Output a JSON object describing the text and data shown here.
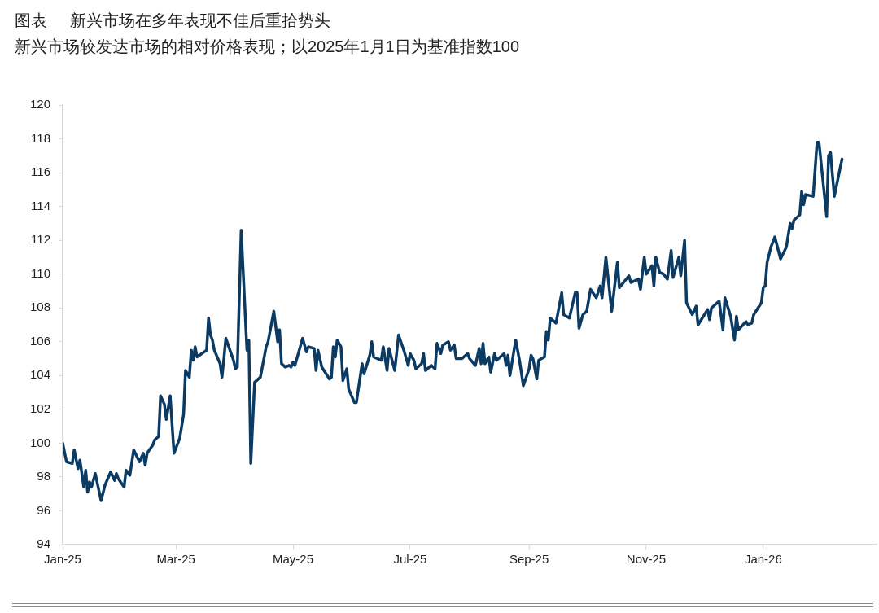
{
  "chart_data": {
    "type": "line",
    "title": "图表     新兴市场在多年表现不佳后重拾势头",
    "subtitle": "新兴市场较发达市场的相对价格表现；以2025年1月1日为基准指数100",
    "x": [
      "2025-01-01",
      "2025-01-03",
      "2025-01-06",
      "2025-01-07",
      "2025-01-09",
      "2025-01-10",
      "2025-01-12",
      "2025-01-13",
      "2025-01-14",
      "2025-01-15",
      "2025-01-16",
      "2025-01-18",
      "2025-01-21",
      "2025-01-23",
      "2025-01-26",
      "2025-01-28",
      "2025-01-29",
      "2025-01-30",
      "2025-02-02",
      "2025-02-03",
      "2025-02-05",
      "2025-02-07",
      "2025-02-10",
      "2025-02-12",
      "2025-02-13",
      "2025-02-14",
      "2025-02-17",
      "2025-02-18",
      "2025-02-20",
      "2025-02-21",
      "2025-02-23",
      "2025-02-24",
      "2025-02-26",
      "2025-02-28",
      "2025-03-03",
      "2025-03-05",
      "2025-03-06",
      "2025-03-08",
      "2025-03-09",
      "2025-03-10",
      "2025-03-11",
      "2025-03-12",
      "2025-03-17",
      "2025-03-18",
      "2025-03-19",
      "2025-03-20",
      "2025-03-21",
      "2025-03-24",
      "2025-03-25",
      "2025-03-26",
      "2025-03-27",
      "2025-03-31",
      "2025-04-01",
      "2025-04-02",
      "2025-04-04",
      "2025-04-07",
      "2025-04-08",
      "2025-04-09",
      "2025-04-11",
      "2025-04-14",
      "2025-04-17",
      "2025-04-18",
      "2025-04-21",
      "2025-04-23",
      "2025-04-24",
      "2025-04-25",
      "2025-04-27",
      "2025-04-29",
      "2025-04-30",
      "2025-05-01",
      "2025-05-02",
      "2025-05-06",
      "2025-05-08",
      "2025-05-09",
      "2025-05-12",
      "2025-05-13",
      "2025-05-14",
      "2025-05-16",
      "2025-05-20",
      "2025-05-21",
      "2025-05-22",
      "2025-05-23",
      "2025-05-24",
      "2025-05-26",
      "2025-05-27",
      "2025-05-29",
      "2025-05-30",
      "2025-06-02",
      "2025-06-03",
      "2025-06-06",
      "2025-06-07",
      "2025-06-10",
      "2025-06-11",
      "2025-06-12",
      "2025-06-16",
      "2025-06-17",
      "2025-06-19",
      "2025-06-20",
      "2025-06-23",
      "2025-06-25",
      "2025-06-28",
      "2025-06-30",
      "2025-07-01",
      "2025-07-03",
      "2025-07-04",
      "2025-07-07",
      "2025-07-08",
      "2025-07-09",
      "2025-07-12",
      "2025-07-14",
      "2025-07-15",
      "2025-07-17",
      "2025-07-18",
      "2025-07-21",
      "2025-07-22",
      "2025-07-24",
      "2025-07-25",
      "2025-07-28",
      "2025-07-31",
      "2025-08-01",
      "2025-08-04",
      "2025-08-06",
      "2025-08-07",
      "2025-08-08",
      "2025-08-09",
      "2025-08-11",
      "2025-08-12",
      "2025-08-14",
      "2025-08-15",
      "2025-08-19",
      "2025-08-20",
      "2025-08-21",
      "2025-08-22",
      "2025-08-25",
      "2025-08-27",
      "2025-08-29",
      "2025-09-01",
      "2025-09-02",
      "2025-09-03",
      "2025-09-05",
      "2025-09-06",
      "2025-09-09",
      "2025-09-10",
      "2025-09-11",
      "2025-09-12",
      "2025-09-15",
      "2025-09-18",
      "2025-09-19",
      "2025-09-22",
      "2025-09-25",
      "2025-09-26",
      "2025-09-27",
      "2025-09-29",
      "2025-10-01",
      "2025-10-03",
      "2025-10-06",
      "2025-10-08",
      "2025-10-09",
      "2025-10-11",
      "2025-10-14",
      "2025-10-17",
      "2025-10-18",
      "2025-10-23",
      "2025-10-24",
      "2025-10-28",
      "2025-10-29",
      "2025-10-31",
      "2025-11-01",
      "2025-11-04",
      "2025-11-05",
      "2025-11-06",
      "2025-11-08",
      "2025-11-10",
      "2025-11-12",
      "2025-11-14",
      "2025-11-15",
      "2025-11-18",
      "2025-11-19",
      "2025-11-21",
      "2025-11-22",
      "2025-11-25",
      "2025-11-27",
      "2025-11-28",
      "2025-12-03",
      "2025-12-04",
      "2025-12-05",
      "2025-12-09",
      "2025-12-11",
      "2025-12-12",
      "2025-12-15",
      "2025-12-17",
      "2025-12-18",
      "2025-12-19",
      "2025-12-23",
      "2025-12-24",
      "2025-12-26",
      "2025-12-27",
      "2025-12-31",
      "2026-01-01",
      "2026-01-02",
      "2026-01-03",
      "2026-01-05",
      "2026-01-07",
      "2026-01-10",
      "2026-01-13",
      "2026-01-15",
      "2026-01-16",
      "2026-01-17",
      "2026-01-20",
      "2026-01-21",
      "2026-01-22",
      "2026-01-23",
      "2026-01-27",
      "2026-01-29",
      "2026-01-30",
      "2026-02-03",
      "2026-02-04",
      "2026-02-05",
      "2026-02-07",
      "2026-02-11"
    ],
    "series": [
      {
        "color": "#0b3a63",
        "values": [
          100.0,
          98.9,
          98.8,
          99.6,
          98.5,
          99.0,
          97.4,
          98.4,
          97.1,
          97.7,
          97.4,
          98.2,
          96.6,
          97.5,
          98.3,
          97.8,
          98.2,
          97.9,
          97.4,
          98.4,
          98.1,
          99.6,
          98.9,
          99.4,
          98.7,
          99.4,
          99.9,
          100.2,
          100.4,
          102.8,
          102.3,
          101.4,
          102.8,
          99.4,
          100.3,
          101.7,
          104.3,
          103.9,
          105.5,
          104.9,
          105.7,
          105.1,
          105.5,
          107.4,
          106.4,
          106.1,
          105.5,
          104.7,
          103.9,
          105.0,
          106.2,
          104.9,
          104.4,
          104.5,
          112.6,
          105.5,
          106.1,
          98.8,
          103.6,
          103.9,
          105.7,
          106.0,
          107.8,
          106.0,
          106.7,
          104.7,
          104.5,
          104.6,
          104.5,
          104.8,
          104.6,
          106.2,
          105.4,
          105.7,
          105.6,
          104.3,
          105.5,
          104.5,
          103.8,
          103.9,
          105.7,
          105.1,
          106.1,
          105.7,
          103.7,
          104.4,
          103.2,
          102.4,
          102.4,
          104.7,
          104.1,
          105.2,
          106.0,
          105.1,
          104.9,
          105.7,
          104.3,
          105.6,
          104.3,
          106.4,
          105.4,
          104.6,
          105.3,
          104.9,
          104.4,
          104.7,
          105.3,
          104.3,
          104.6,
          104.4,
          105.9,
          105.3,
          105.8,
          106.0,
          105.5,
          105.8,
          105.0,
          105.0,
          105.3,
          105.0,
          104.6,
          105.6,
          104.7,
          105.9,
          104.7,
          105.1,
          104.2,
          105.3,
          104.9,
          105.3,
          104.6,
          105.2,
          104.0,
          106.1,
          104.9,
          103.4,
          104.4,
          105.2,
          105.0,
          103.8,
          104.9,
          105.1,
          106.6,
          106.1,
          107.4,
          107.1,
          108.9,
          107.6,
          107.4,
          108.9,
          108.9,
          106.8,
          107.6,
          107.8,
          109.1,
          108.6,
          109.3,
          108.6,
          111.0,
          107.8,
          110.7,
          109.2,
          109.9,
          109.5,
          109.7,
          109.1,
          111.0,
          110.0,
          110.5,
          109.3,
          111.0,
          110.1,
          110.0,
          109.7,
          111.4,
          109.8,
          111.0,
          109.9,
          112.0,
          108.3,
          107.6,
          108.1,
          107.0,
          107.9,
          107.3,
          108.0,
          108.4,
          106.7,
          108.6,
          107.5,
          106.1,
          107.5,
          106.7,
          107.2,
          107.0,
          107.1,
          107.6,
          108.3,
          109.2,
          109.3,
          110.7,
          111.6,
          112.2,
          110.9,
          111.6,
          113.0,
          112.7,
          113.2,
          113.5,
          114.9,
          114.1,
          114.7,
          114.6,
          117.8,
          117.8,
          113.4,
          117.0,
          117.2,
          114.6,
          116.8
        ]
      }
    ],
    "xlim": [
      "2025-01-01",
      "2026-03-01"
    ],
    "xticks": [
      {
        "value": "2025-01-01",
        "label": "Jan-25"
      },
      {
        "value": "2025-03-01",
        "label": "Mar-25"
      },
      {
        "value": "2025-05-01",
        "label": "May-25"
      },
      {
        "value": "2025-07-01",
        "label": "Jul-25"
      },
      {
        "value": "2025-09-01",
        "label": "Sep-25"
      },
      {
        "value": "2025-11-01",
        "label": "Nov-25"
      },
      {
        "value": "2026-01-01",
        "label": "Jan-26"
      }
    ],
    "ylim": [
      94,
      120
    ],
    "yticks": [
      94,
      96,
      98,
      100,
      102,
      104,
      106,
      108,
      110,
      112,
      114,
      116,
      118,
      120
    ],
    "grid": false,
    "legend": false,
    "marker": "none",
    "line_style": "solid"
  }
}
